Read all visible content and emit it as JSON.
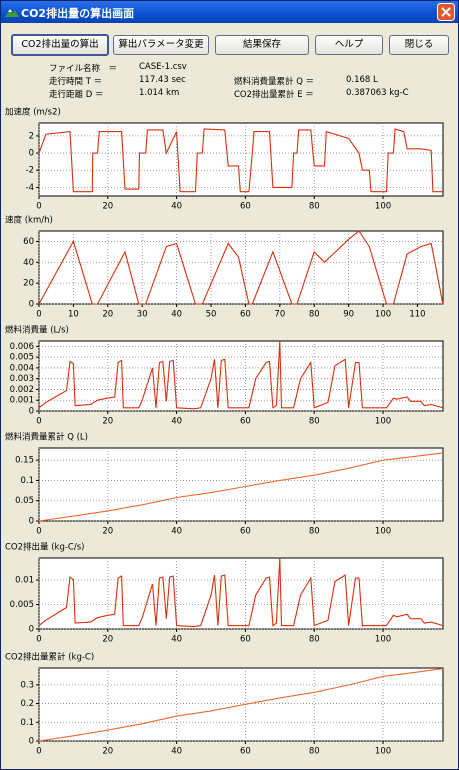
{
  "window": {
    "title": "CO2排出量の算出画面"
  },
  "buttons": [
    "CO2排出量の算出",
    "算出パラメータ変更",
    "結果保存",
    "ヘルプ",
    "閉じる"
  ],
  "info": [
    {
      "label": "ファイル名称　＝",
      "value": "CASE-1.csv"
    },
    {
      "label": "走行時間 T ＝",
      "value": "117.43 sec"
    },
    {
      "label": "走行距離 D ＝",
      "value": "1.014 km"
    },
    {
      "label": "燃料消費量累計 Q ＝",
      "value": "0.168 L"
    },
    {
      "label": "CO2排出量累計 E ＝",
      "value": "0.387063 kg-C"
    }
  ],
  "chart_data": [
    {
      "type": "line",
      "title": "加速度 (m/s2)",
      "color": "#d8300c",
      "grid": true,
      "xlim": [
        0,
        117.43
      ],
      "xticks": [
        0,
        20,
        40,
        60,
        80,
        100
      ],
      "ylim": [
        -5,
        3.5
      ],
      "yticks": [
        -4,
        -2,
        0,
        2
      ],
      "x": [
        0,
        2,
        9,
        10,
        15.5,
        15.6,
        17,
        17.5,
        24,
        25,
        29,
        29.2,
        31,
        31.5,
        36,
        37,
        40,
        41,
        45.5,
        46,
        47.5,
        48,
        54,
        55,
        58,
        58.5,
        61,
        62,
        62.5,
        67,
        68,
        73.5,
        74,
        75,
        75.5,
        79,
        80,
        83,
        83.5,
        90,
        93,
        94,
        96,
        96.5,
        101,
        101.5,
        103,
        103.5,
        106,
        107,
        111,
        114,
        114.5,
        117.4
      ],
      "values": [
        0,
        2.2,
        2.5,
        -4.5,
        -4.5,
        0,
        0,
        2.5,
        2.5,
        -4.2,
        -4.2,
        0,
        0,
        2.7,
        2.7,
        0,
        2.5,
        -4.5,
        -4.5,
        0,
        0,
        2.8,
        2.7,
        -1.5,
        -1.5,
        -4.5,
        -4.5,
        0,
        2.5,
        2.5,
        -4,
        -4,
        0,
        0,
        2.7,
        2.7,
        -1.5,
        -1.5,
        2.5,
        1.7,
        0,
        -2,
        -2,
        -4.5,
        -4.5,
        0,
        0,
        2.8,
        2.5,
        0.5,
        0.5,
        0.3,
        -4.5,
        -4.5
      ]
    },
    {
      "type": "line",
      "title": "速度 (km/h)",
      "color": "#d8300c",
      "grid": true,
      "xlim": [
        0,
        117.43
      ],
      "xticks": [
        0,
        10,
        20,
        30,
        40,
        50,
        60,
        70,
        80,
        90,
        100,
        110
      ],
      "ylim": [
        0,
        70
      ],
      "yticks": [
        0,
        20,
        40,
        60
      ],
      "x": [
        0,
        10,
        15.5,
        17,
        25,
        29,
        31,
        37,
        40,
        45.5,
        47.5,
        55,
        58,
        61,
        62,
        68,
        73.5,
        75,
        80,
        83,
        90,
        93,
        96,
        101,
        103,
        107,
        111,
        114,
        117.4
      ],
      "values": [
        0,
        60,
        0,
        0,
        50,
        0,
        0,
        55,
        58,
        0,
        0,
        58,
        45,
        0,
        0,
        50,
        0,
        0,
        50,
        40,
        62,
        70,
        55,
        0,
        0,
        48,
        55,
        58,
        0
      ]
    },
    {
      "type": "line",
      "title": "燃料消費量 (L/s)",
      "color": "#d8300c",
      "grid": true,
      "xlim": [
        0,
        117.43
      ],
      "xticks": [
        0,
        20,
        40,
        60,
        80,
        100
      ],
      "ylim": [
        0,
        0.0065
      ],
      "yticks": [
        0,
        0.001,
        0.002,
        0.003,
        0.004,
        0.005,
        0.006
      ],
      "x": [
        0,
        2,
        8,
        9,
        10,
        10.5,
        15,
        17,
        20,
        22,
        23,
        24,
        24.5,
        29,
        30,
        33,
        34,
        35,
        36,
        37,
        38,
        39,
        40,
        45,
        47,
        50,
        51,
        52,
        53,
        54,
        55,
        61,
        63,
        66,
        67,
        68,
        69,
        70,
        70.5,
        74,
        76,
        79,
        80,
        84,
        86,
        89,
        90,
        92,
        93,
        94,
        101,
        103,
        104,
        107,
        108,
        111,
        112,
        114,
        117.4
      ],
      "values": [
        0.0003,
        0.0008,
        0.0019,
        0.0046,
        0.0044,
        0.0005,
        0.0006,
        0.001,
        0.0012,
        0.0013,
        0.0045,
        0.0047,
        0.0003,
        0.0003,
        0.001,
        0.004,
        0.0003,
        0.0045,
        0.0046,
        0.0009,
        0.0046,
        0.0047,
        0.0003,
        0.0002,
        0.0003,
        0.003,
        0.0048,
        0.0003,
        0.0047,
        0.0048,
        0.0003,
        0.0003,
        0.003,
        0.0045,
        0.0046,
        0.0003,
        0.0005,
        0.0065,
        0.0003,
        0.0003,
        0.003,
        0.0045,
        0.0003,
        0.0008,
        0.0042,
        0.0048,
        0.0003,
        0.0045,
        0.0045,
        0.0003,
        0.0003,
        0.0012,
        0.0011,
        0.0013,
        0.0009,
        0.0009,
        0.0005,
        0.0006,
        0.0003
      ]
    },
    {
      "type": "line",
      "title": "燃料消費量累計 Q (L)",
      "color": "#f06a30",
      "grid": true,
      "xlim": [
        0,
        117.43
      ],
      "xticks": [
        0,
        20,
        40,
        60,
        80,
        100
      ],
      "ylim": [
        0,
        0.18
      ],
      "yticks": [
        0,
        0.05,
        0.1,
        0.15
      ],
      "x": [
        0,
        10,
        20,
        30,
        40,
        50,
        60,
        70,
        80,
        90,
        100,
        110,
        117.43
      ],
      "values": [
        0,
        0.012,
        0.025,
        0.04,
        0.058,
        0.07,
        0.085,
        0.1,
        0.113,
        0.13,
        0.15,
        0.16,
        0.168
      ]
    },
    {
      "type": "line",
      "title": "CO2排出量 (kg-C/s)",
      "color": "#d8300c",
      "grid": true,
      "xlim": [
        0,
        117.43
      ],
      "xticks": [
        0,
        20,
        40,
        60,
        80,
        100
      ],
      "ylim": [
        0,
        0.0145
      ],
      "yticks": [
        0,
        0.005,
        0.01
      ],
      "x": [
        0,
        2,
        8,
        9,
        10,
        10.5,
        15,
        17,
        20,
        22,
        23,
        24,
        24.5,
        29,
        30,
        33,
        34,
        35,
        36,
        37,
        38,
        39,
        40,
        45,
        47,
        50,
        51,
        52,
        53,
        54,
        55,
        61,
        63,
        66,
        67,
        68,
        69,
        70,
        70.5,
        74,
        76,
        79,
        80,
        84,
        86,
        89,
        90,
        92,
        93,
        94,
        101,
        103,
        104,
        107,
        108,
        111,
        112,
        114,
        117.4
      ],
      "values": [
        0.0007,
        0.0018,
        0.0044,
        0.0106,
        0.0101,
        0.0012,
        0.0014,
        0.0023,
        0.0028,
        0.003,
        0.0104,
        0.0108,
        0.0007,
        0.0007,
        0.0023,
        0.0092,
        0.0007,
        0.0104,
        0.0106,
        0.0021,
        0.0106,
        0.0108,
        0.0007,
        0.0005,
        0.0007,
        0.0069,
        0.011,
        0.0007,
        0.0108,
        0.011,
        0.0007,
        0.0007,
        0.0069,
        0.0104,
        0.0106,
        0.0007,
        0.0012,
        0.0145,
        0.0007,
        0.0007,
        0.0069,
        0.0104,
        0.0007,
        0.0018,
        0.0097,
        0.011,
        0.0007,
        0.0104,
        0.0104,
        0.0007,
        0.0007,
        0.0028,
        0.0025,
        0.003,
        0.0021,
        0.0021,
        0.0012,
        0.0014,
        0.0007
      ]
    },
    {
      "type": "line",
      "title": "CO2排出量累計 (kg-C)",
      "color": "#f06a30",
      "grid": true,
      "xlim": [
        0,
        117.43
      ],
      "xticks": [
        0,
        20,
        40,
        60,
        80,
        100
      ],
      "ylim": [
        0,
        0.39
      ],
      "yticks": [
        0,
        0.1,
        0.2,
        0.3
      ],
      "x": [
        0,
        10,
        20,
        30,
        40,
        50,
        60,
        70,
        80,
        90,
        100,
        110,
        117.43
      ],
      "values": [
        0,
        0.028,
        0.058,
        0.092,
        0.133,
        0.161,
        0.196,
        0.23,
        0.26,
        0.299,
        0.345,
        0.368,
        0.387
      ]
    }
  ]
}
